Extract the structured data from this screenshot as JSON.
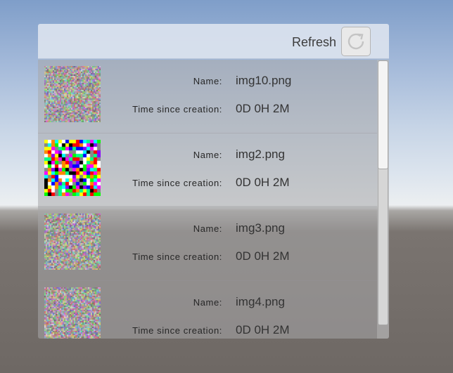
{
  "header": {
    "refresh_label": "Refresh",
    "refresh_icon": "refresh-icon"
  },
  "items": [
    {
      "name_label": "Name:",
      "name": "img10.png",
      "time_label": "Time since creation:",
      "time": "0D 0H 2M",
      "thumbnail": "fine-noise"
    },
    {
      "name_label": "Name:",
      "name": "img2.png",
      "time_label": "Time since creation:",
      "time": "0D 0H 2M",
      "thumbnail": "coarse-noise"
    },
    {
      "name_label": "Name:",
      "name": "img3.png",
      "time_label": "Time since creation:",
      "time": "0D 0H 2M",
      "thumbnail": "fine-noise"
    },
    {
      "name_label": "Name:",
      "name": "img4.png",
      "time_label": "Time since creation:",
      "time": "0D 0H 2M",
      "thumbnail": "fine-noise"
    }
  ],
  "scrollbar": {
    "position": 0.0,
    "visible_fraction": 0.41
  }
}
